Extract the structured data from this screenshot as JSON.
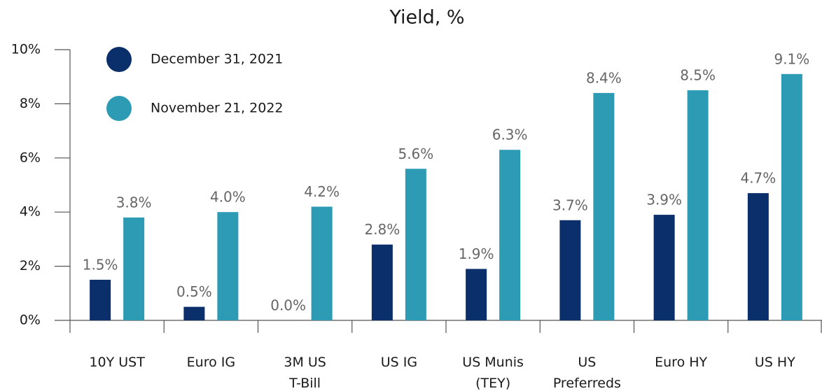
{
  "chart_data": {
    "type": "bar",
    "title": "Yield, %",
    "categories": [
      "10Y UST",
      "Euro IG",
      "3M US\nT-Bill",
      "US IG",
      "US Munis\n(TEY)",
      "US\nPreferreds",
      "Euro HY",
      "US HY"
    ],
    "series": [
      {
        "name": "December 31, 2021",
        "color": "#0b2f6b",
        "values": [
          1.5,
          0.5,
          0.0,
          2.8,
          1.9,
          3.7,
          3.9,
          4.7
        ],
        "value_labels": [
          "1.5%",
          "0.5%",
          "0.0%",
          "2.8%",
          "1.9%",
          "3.7%",
          "3.9%",
          "4.7%"
        ]
      },
      {
        "name": "November 21, 2022",
        "color": "#2e9bb5",
        "values": [
          3.8,
          4.0,
          4.2,
          5.6,
          6.3,
          8.4,
          8.5,
          9.1
        ],
        "value_labels": [
          "3.8%",
          "4.0%",
          "4.2%",
          "5.6%",
          "6.3%",
          "8.4%",
          "8.5%",
          "9.1%"
        ]
      }
    ],
    "ylim": [
      0,
      10
    ],
    "yticks": [
      {
        "value": 0,
        "label": "0%"
      },
      {
        "value": 2,
        "label": "2%"
      },
      {
        "value": 4,
        "label": "4%"
      },
      {
        "value": 6,
        "label": "6%"
      },
      {
        "value": 8,
        "label": "8%"
      },
      {
        "value": 10,
        "label": "10%"
      }
    ],
    "legend": "top-left"
  }
}
